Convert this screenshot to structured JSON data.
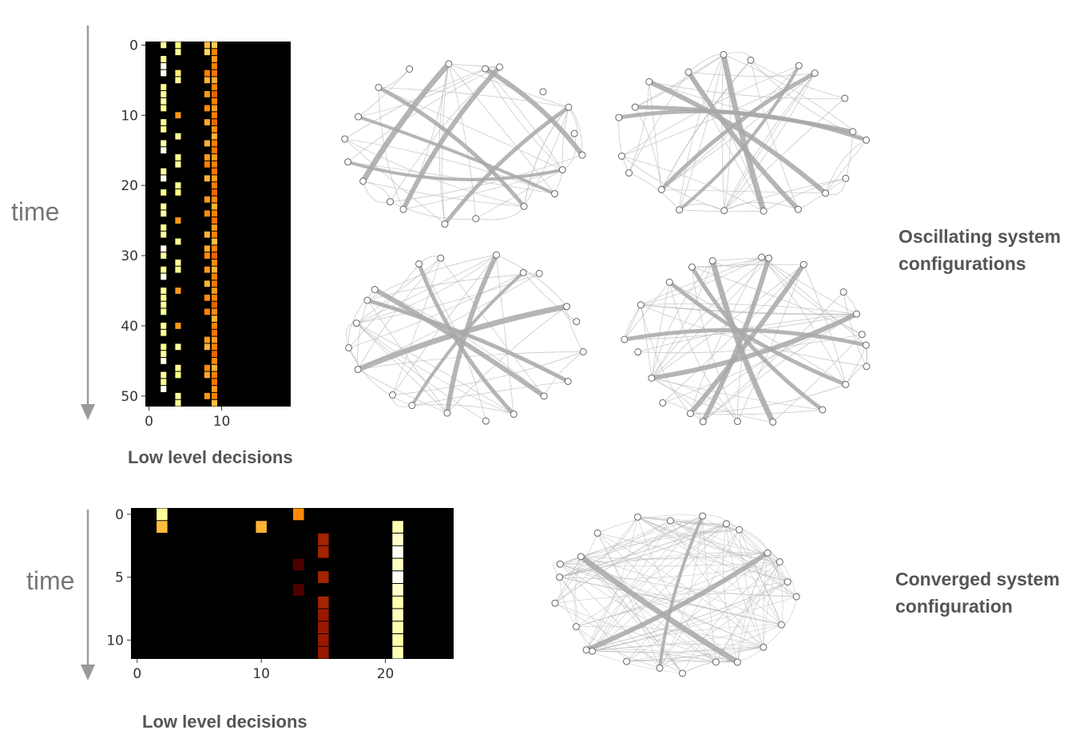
{
  "labels": {
    "time_top": "time",
    "time_bottom": "time",
    "xlabel_top": "Low level decisions",
    "xlabel_bottom": "Low level decisions",
    "oscillating_line1": "Oscillating system",
    "oscillating_line2": "configurations",
    "converged_line1": "Converged system",
    "converged_line2": "configuration"
  },
  "colors": {
    "background_cell": "#000000",
    "heat_low": "#7a0c00",
    "heat_mid": "#e8401a",
    "heat_high": "#f7e34a",
    "heat_max": "#ffffff",
    "arrow": "#9a9a9a",
    "network_edge": "#9a9a9a"
  },
  "chart_data": [
    {
      "type": "heatmap",
      "title": "",
      "xlabel": "Low level decisions",
      "ylabel": "time",
      "xlim": [
        0,
        20
      ],
      "ylim": [
        52,
        0
      ],
      "xticks": [
        0,
        10
      ],
      "yticks": [
        0,
        10,
        20,
        30,
        40,
        50
      ],
      "columns": [
        {
          "x": 2,
          "cells": [
            [
              0,
              0.78
            ],
            [
              2,
              0.8
            ],
            [
              3,
              0.95
            ],
            [
              4,
              0.98
            ],
            [
              6,
              0.78
            ],
            [
              7,
              0.8
            ],
            [
              8,
              0.82
            ],
            [
              9,
              0.78
            ],
            [
              11,
              0.8
            ],
            [
              12,
              0.78
            ],
            [
              14,
              0.82
            ],
            [
              15,
              0.96
            ],
            [
              18,
              0.8
            ],
            [
              19,
              0.97
            ],
            [
              21,
              0.78
            ],
            [
              23,
              0.8
            ],
            [
              24,
              0.82
            ],
            [
              26,
              0.78
            ],
            [
              27,
              0.8
            ],
            [
              29,
              0.96
            ],
            [
              30,
              0.8
            ],
            [
              32,
              0.78
            ],
            [
              33,
              0.96
            ],
            [
              35,
              0.8
            ],
            [
              36,
              0.78
            ],
            [
              37,
              0.82
            ],
            [
              38,
              0.8
            ],
            [
              40,
              0.78
            ],
            [
              41,
              0.8
            ],
            [
              43,
              0.78
            ],
            [
              44,
              0.8
            ],
            [
              45,
              0.95
            ],
            [
              47,
              0.8
            ],
            [
              48,
              0.78
            ],
            [
              49,
              0.97
            ]
          ]
        },
        {
          "x": 4,
          "cells": [
            [
              0,
              0.75
            ],
            [
              1,
              0.78
            ],
            [
              4,
              0.72
            ],
            [
              5,
              0.8
            ],
            [
              10,
              0.55
            ],
            [
              13,
              0.8
            ],
            [
              16,
              0.78
            ],
            [
              17,
              0.8
            ],
            [
              20,
              0.78
            ],
            [
              21,
              0.75
            ],
            [
              25,
              0.55
            ],
            [
              28,
              0.78
            ],
            [
              31,
              0.8
            ],
            [
              32,
              0.78
            ],
            [
              35,
              0.55
            ],
            [
              40,
              0.55
            ],
            [
              43,
              0.8
            ],
            [
              46,
              0.78
            ],
            [
              47,
              0.76
            ],
            [
              50,
              0.8
            ],
            [
              51,
              0.78
            ]
          ]
        },
        {
          "x": 8,
          "cells": [
            [
              0,
              0.62
            ],
            [
              1,
              0.68
            ],
            [
              4,
              0.5
            ],
            [
              5,
              0.6
            ],
            [
              7,
              0.55
            ],
            [
              9,
              0.52
            ],
            [
              11,
              0.58
            ],
            [
              14,
              0.6
            ],
            [
              16,
              0.55
            ],
            [
              17,
              0.5
            ],
            [
              19,
              0.6
            ],
            [
              22,
              0.55
            ],
            [
              24,
              0.52
            ],
            [
              27,
              0.6
            ],
            [
              29,
              0.58
            ],
            [
              30,
              0.52
            ],
            [
              32,
              0.55
            ],
            [
              34,
              0.6
            ],
            [
              36,
              0.52
            ],
            [
              38,
              0.5
            ],
            [
              42,
              0.55
            ],
            [
              43,
              0.6
            ],
            [
              46,
              0.52
            ],
            [
              47,
              0.58
            ],
            [
              50,
              0.55
            ]
          ]
        },
        {
          "x": 9,
          "cells": [
            [
              0,
              0.65
            ],
            [
              1,
              0.5
            ],
            [
              2,
              0.55
            ],
            [
              3,
              0.5
            ],
            [
              4,
              0.48
            ],
            [
              5,
              0.58
            ],
            [
              6,
              0.5
            ],
            [
              7,
              0.45
            ],
            [
              8,
              0.5
            ],
            [
              9,
              0.55
            ],
            [
              10,
              0.5
            ],
            [
              11,
              0.45
            ],
            [
              12,
              0.52
            ],
            [
              13,
              0.6
            ],
            [
              14,
              0.5
            ],
            [
              15,
              0.48
            ],
            [
              16,
              0.55
            ],
            [
              17,
              0.5
            ],
            [
              18,
              0.48
            ],
            [
              19,
              0.55
            ],
            [
              20,
              0.5
            ],
            [
              21,
              0.45
            ],
            [
              22,
              0.52
            ],
            [
              23,
              0.6
            ],
            [
              24,
              0.5
            ],
            [
              25,
              0.48
            ],
            [
              26,
              0.55
            ],
            [
              27,
              0.5
            ],
            [
              28,
              0.62
            ],
            [
              29,
              0.5
            ],
            [
              30,
              0.45
            ],
            [
              31,
              0.52
            ],
            [
              32,
              0.6
            ],
            [
              33,
              0.5
            ],
            [
              34,
              0.48
            ],
            [
              35,
              0.55
            ],
            [
              36,
              0.5
            ],
            [
              37,
              0.45
            ],
            [
              38,
              0.52
            ],
            [
              39,
              0.6
            ],
            [
              40,
              0.5
            ],
            [
              41,
              0.48
            ],
            [
              42,
              0.55
            ],
            [
              43,
              0.5
            ],
            [
              44,
              0.45
            ],
            [
              45,
              0.52
            ],
            [
              46,
              0.6
            ],
            [
              47,
              0.5
            ],
            [
              48,
              0.48
            ],
            [
              49,
              0.55
            ],
            [
              50,
              0.5
            ],
            [
              51,
              0.62
            ]
          ]
        }
      ]
    },
    {
      "type": "heatmap",
      "title": "",
      "xlabel": "Low level decisions",
      "ylabel": "time",
      "xlim": [
        0,
        26
      ],
      "ylim": [
        12,
        0
      ],
      "xticks": [
        0,
        10,
        20
      ],
      "yticks": [
        0,
        5,
        10
      ],
      "columns": [
        {
          "x": 2,
          "cells": [
            [
              0,
              0.8
            ],
            [
              1,
              0.62
            ]
          ]
        },
        {
          "x": 10,
          "cells": [
            [
              1,
              0.6
            ]
          ]
        },
        {
          "x": 13,
          "cells": [
            [
              0,
              0.52
            ]
          ]
        },
        {
          "x": 13,
          "cells": [
            [
              4,
              0.15
            ],
            [
              6,
              0.15
            ]
          ]
        },
        {
          "x": 15,
          "cells": [
            [
              2,
              0.32
            ],
            [
              3,
              0.32
            ],
            [
              5,
              0.32
            ],
            [
              7,
              0.32
            ],
            [
              8,
              0.3
            ],
            [
              9,
              0.3
            ],
            [
              10,
              0.3
            ],
            [
              11,
              0.3
            ]
          ]
        },
        {
          "x": 21,
          "cells": [
            [
              1,
              0.85
            ],
            [
              2,
              0.9
            ],
            [
              3,
              0.98
            ],
            [
              4,
              0.88
            ],
            [
              5,
              0.98
            ],
            [
              6,
              0.9
            ],
            [
              7,
              0.85
            ],
            [
              8,
              0.87
            ],
            [
              9,
              0.85
            ],
            [
              10,
              0.84
            ],
            [
              11,
              0.86
            ]
          ]
        }
      ]
    }
  ]
}
